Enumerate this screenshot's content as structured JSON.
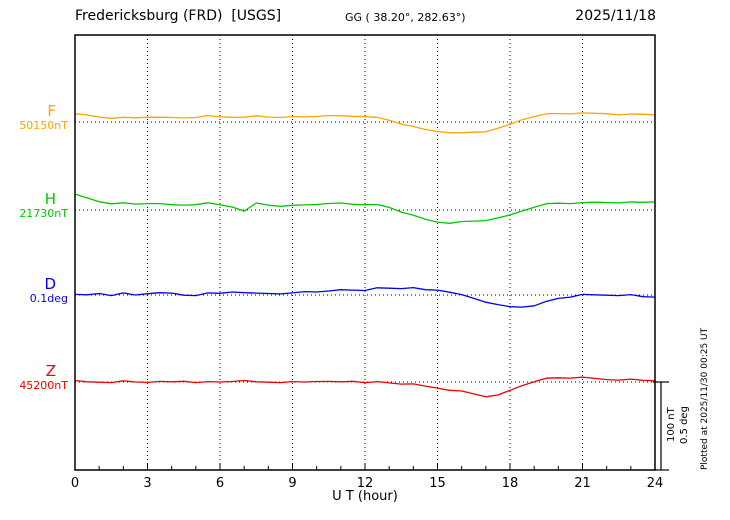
{
  "header": {
    "station": "Fredericksburg (FRD)  [USGS]",
    "gg": "GG ( 38.20°, 282.63°)",
    "date": "2025/11/18"
  },
  "footer": {
    "plotted_at": "Plotted at 2025/11/30 00:25 UT"
  },
  "chart_data": {
    "type": "line",
    "title": "Fredericksburg (FRD) [USGS] magnetogram 2025/11/18",
    "xlabel": "U T (hour)",
    "x_range": [
      0,
      24
    ],
    "x_ticks": [
      0,
      3,
      6,
      9,
      12,
      15,
      18,
      21,
      24
    ],
    "x_step_hours": 0.5,
    "grid": "dotted-vertical-at-3h-and-dotted-baselines",
    "scale_bar": {
      "labels": [
        "100 nT",
        "0.5 deg"
      ],
      "nT_per_bar": 100,
      "deg_per_bar": 0.5
    },
    "series": [
      {
        "id": "F",
        "label": "F",
        "baseline_label": "50150nT",
        "baseline": 50150,
        "units": "nT",
        "color": "#FFA500",
        "description": "deviation from baseline in nT",
        "values": [
          9,
          8,
          6,
          5,
          5,
          5,
          6,
          5,
          5,
          5,
          6,
          7,
          6,
          6,
          5,
          7,
          6,
          6,
          6,
          6,
          7,
          7,
          7,
          7,
          7,
          5,
          2,
          -2,
          -6,
          -9,
          -11,
          -12,
          -13,
          -12,
          -11,
          -8,
          -3,
          3,
          7,
          9,
          10,
          10,
          10,
          10,
          10,
          9,
          9,
          9,
          9
        ]
      },
      {
        "id": "H",
        "label": "H",
        "baseline_label": "21730nT",
        "baseline": 21730,
        "units": "nT",
        "color": "#00C800",
        "description": "deviation from baseline in nT",
        "values": [
          18,
          14,
          10,
          8,
          8,
          7,
          8,
          7,
          6,
          6,
          7,
          8,
          6,
          4,
          -2,
          8,
          6,
          5,
          5,
          6,
          7,
          7,
          8,
          7,
          7,
          6,
          3,
          -2,
          -7,
          -11,
          -14,
          -15,
          -14,
          -13,
          -12,
          -10,
          -6,
          -1,
          4,
          7,
          8,
          8,
          8,
          9,
          9,
          9,
          9,
          9,
          10
        ]
      },
      {
        "id": "D",
        "label": "D",
        "baseline_label": "0.1deg",
        "baseline": 0.1,
        "units": "deg",
        "color": "#0000EE",
        "description": "deviation from baseline in degrees",
        "values": [
          0,
          0,
          0.01,
          0,
          0.01,
          0,
          0.01,
          0.01,
          0.01,
          0,
          0,
          0.01,
          0.01,
          0.02,
          0.01,
          0.01,
          0.01,
          0.01,
          0.01,
          0.02,
          0.02,
          0.02,
          0.03,
          0.03,
          0.03,
          0.04,
          0.04,
          0.04,
          0.04,
          0.03,
          0.03,
          0.02,
          0,
          -0.02,
          -0.04,
          -0.06,
          -0.07,
          -0.07,
          -0.06,
          -0.04,
          -0.02,
          -0.01,
          0,
          0,
          0,
          0,
          0,
          -0.01,
          -0.01
        ]
      },
      {
        "id": "Z",
        "label": "Z",
        "baseline_label": "45200nT",
        "baseline": 45200,
        "units": "nT",
        "color": "#EE0000",
        "description": "deviation from baseline in nT",
        "values": [
          1,
          0,
          0,
          0,
          1,
          0,
          0,
          0,
          0,
          1,
          0,
          0,
          0,
          1,
          1,
          0,
          0,
          0,
          0,
          0,
          1,
          0,
          0,
          1,
          0,
          0,
          -1,
          -2,
          -3,
          -5,
          -7,
          -9,
          -11,
          -14,
          -17,
          -16,
          -10,
          -4,
          1,
          4,
          5,
          5,
          5,
          4,
          3,
          3,
          3,
          2,
          2
        ]
      }
    ]
  }
}
